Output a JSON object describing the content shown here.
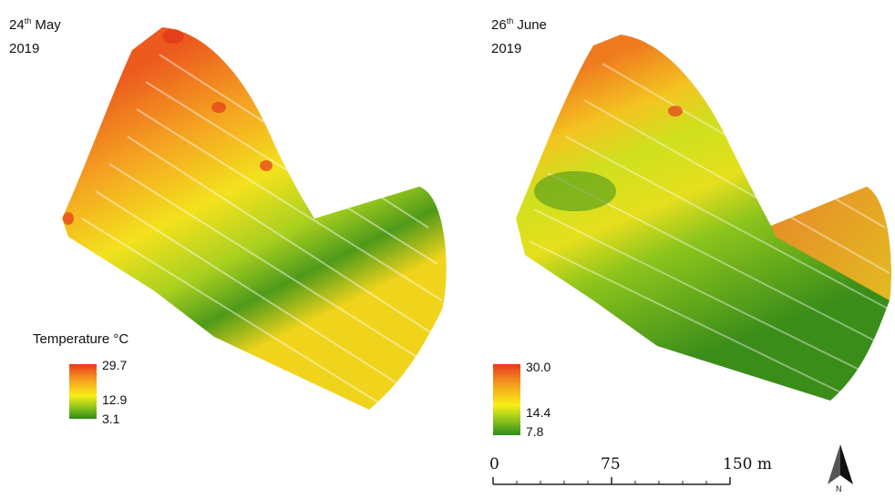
{
  "panels": [
    {
      "date_day": "24",
      "date_suffix": "th",
      "date_month": "May",
      "date_year": "2019",
      "legend_title": "Temperature °C",
      "legend_values": [
        "29.7",
        "12.9",
        "3.1"
      ]
    },
    {
      "date_day": "26",
      "date_suffix": "th",
      "date_month": "June",
      "date_year": "2019",
      "legend_title": "",
      "legend_values": [
        "30.0",
        "14.4",
        "7.8"
      ]
    }
  ],
  "scale_bar": {
    "ticks": [
      "0",
      "75",
      "150 m"
    ]
  },
  "north_arrow": {
    "label": "N"
  },
  "colors": {
    "hot": "#e8381c",
    "warm": "#f6a21f",
    "mid": "#f7ef18",
    "cool": "#8ac21c",
    "cold": "#2f8a19"
  }
}
